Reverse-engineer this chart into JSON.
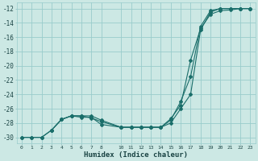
{
  "xlabel": "Humidex (Indice chaleur)",
  "bg_color": "#cce8e4",
  "grid_color": "#99cccc",
  "line_color": "#1a6e6a",
  "xlim": [
    -0.5,
    23.5
  ],
  "ylim": [
    -30.8,
    -11.2
  ],
  "xtick_vals": [
    0,
    1,
    2,
    3,
    4,
    5,
    6,
    7,
    8,
    10,
    11,
    12,
    13,
    14,
    15,
    16,
    17,
    18,
    19,
    20,
    21,
    22,
    23
  ],
  "ytick_vals": [
    -30,
    -28,
    -26,
    -24,
    -22,
    -20,
    -18,
    -16,
    -14,
    -12
  ],
  "line1_x": [
    0,
    1,
    2,
    3,
    4,
    5,
    6,
    7,
    8,
    10,
    11,
    12,
    13,
    14,
    15,
    16,
    17,
    18,
    19,
    20,
    21,
    22,
    23
  ],
  "line1_y": [
    -30,
    -30,
    -30,
    -29,
    -27.5,
    -27,
    -27.2,
    -27.2,
    -28.2,
    -28.6,
    -28.6,
    -28.6,
    -28.6,
    -28.6,
    -28.0,
    -26.0,
    -24.0,
    -15.0,
    -12.5,
    -12,
    -12,
    -12,
    -12
  ],
  "line2_x": [
    0,
    1,
    2,
    3,
    4,
    5,
    6,
    7,
    8,
    10,
    11,
    12,
    13,
    14,
    15,
    16,
    17,
    18,
    19,
    20,
    21,
    22,
    23
  ],
  "line2_y": [
    -30,
    -30,
    -30,
    -29,
    -27.5,
    -27,
    -27.0,
    -27.3,
    -27.8,
    -28.6,
    -28.6,
    -28.6,
    -28.6,
    -28.6,
    -27.6,
    -25.0,
    -21.5,
    -14.5,
    -12.3,
    -12,
    -12,
    -12,
    -12
  ],
  "line3_x": [
    3,
    4,
    5,
    6,
    7,
    8,
    10,
    11,
    12,
    13,
    14,
    15,
    16,
    17,
    18,
    19,
    20,
    21,
    22,
    23
  ],
  "line3_y": [
    -29,
    -27.5,
    -27.0,
    -27.0,
    -27.0,
    -27.6,
    -28.6,
    -28.6,
    -28.6,
    -28.6,
    -28.6,
    -27.4,
    -25.5,
    -19.2,
    -14.8,
    -12.8,
    -12.3,
    -12.2,
    -12,
    -12
  ]
}
